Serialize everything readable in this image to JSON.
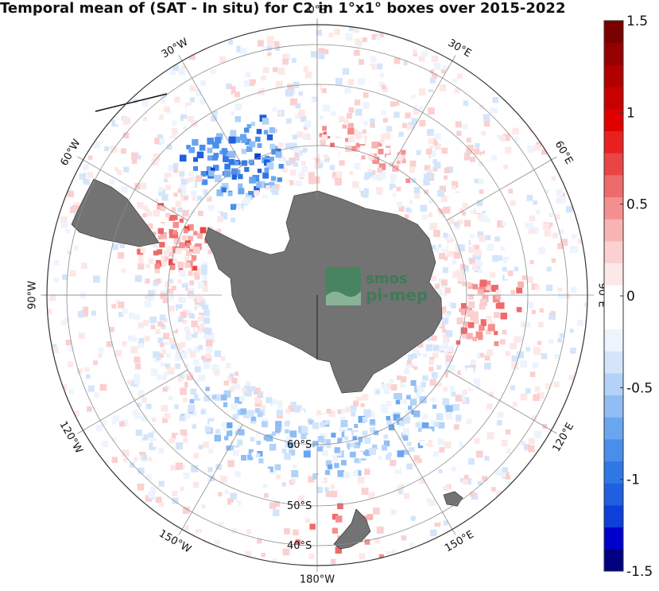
{
  "title": "Temporal mean of (SAT - In situ) for C2 in 1°x1° boxes over 2015-2022",
  "logo": {
    "line1": "smos",
    "line2": "pi-mep"
  },
  "map": {
    "projection": "south-polar-stereographic",
    "meridian_labels": [
      "0°E",
      "30°E",
      "60°E",
      "90°E",
      "120°E",
      "150°E",
      "180°W",
      "150°W",
      "120°W",
      "90°W",
      "60°W",
      "30°W"
    ],
    "parallel_labels": [
      "60°S",
      "50°S",
      "40°S"
    ],
    "land_color": "#737373",
    "grid_color": "#8c8c8c"
  },
  "colorbar": {
    "tick_labels": [
      "1.5",
      "1",
      "0.5",
      "0",
      "-0.5",
      "-1",
      "-1.5"
    ],
    "range": [
      -1.5,
      1.5
    ],
    "colors": [
      "#000080",
      "#0000cc",
      "#0d3fd9",
      "#1f5fe0",
      "#3077e6",
      "#4a8eeb",
      "#6aa6f0",
      "#8fbdf4",
      "#b3d2f8",
      "#d4e5fb",
      "#edf4fd",
      "#ffffff",
      "#ffffff",
      "#fde8e8",
      "#fbd0d0",
      "#f8b3b3",
      "#f48f8f",
      "#ef6a6a",
      "#ea4545",
      "#e82020",
      "#e00000",
      "#c80000",
      "#b00000",
      "#960000",
      "#7a0000"
    ]
  }
}
